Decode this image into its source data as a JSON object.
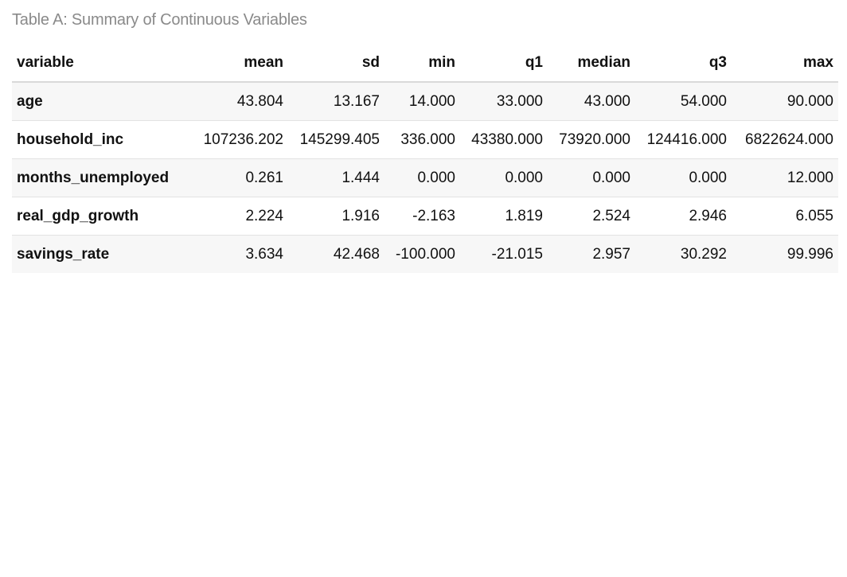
{
  "caption": "Table A: Summary of Continuous Variables",
  "table": {
    "headers": [
      "variable",
      "mean",
      "sd",
      "min",
      "q1",
      "median",
      "q3",
      "max"
    ],
    "rows": [
      [
        "age",
        "43.804",
        "13.167",
        "14.000",
        "33.000",
        "43.000",
        "54.000",
        "90.000"
      ],
      [
        "household_inc",
        "107236.202",
        "145299.405",
        "336.000",
        "43380.000",
        "73920.000",
        "124416.000",
        "6822624.000"
      ],
      [
        "months_unemployed",
        "0.261",
        "1.444",
        "0.000",
        "0.000",
        "0.000",
        "0.000",
        "12.000"
      ],
      [
        "real_gdp_growth",
        "2.224",
        "1.916",
        "-2.163",
        "1.819",
        "2.524",
        "2.946",
        "6.055"
      ],
      [
        "savings_rate",
        "3.634",
        "42.468",
        "-100.000",
        "-21.015",
        "2.957",
        "30.292",
        "99.996"
      ]
    ]
  },
  "colors": {
    "caption": "#8a8a8a",
    "stripe": "#f7f7f7",
    "rule": "#d9d9d9"
  }
}
